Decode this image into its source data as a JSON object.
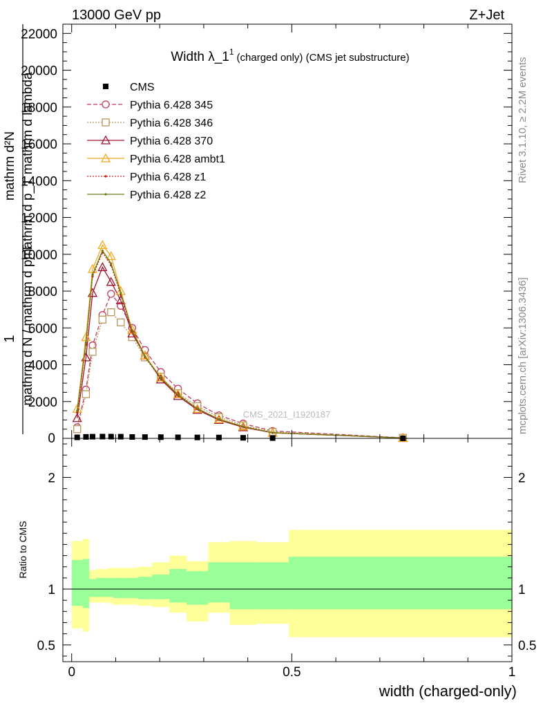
{
  "header": {
    "left": "13000 GeV pp",
    "right": "Z+Jet"
  },
  "side": {
    "rivet": "Rivet 3.1.10, ≥ 2.2M events",
    "mcplots": "mcplots.cern.ch [arXiv:1306.3436]"
  },
  "watermark": "CMS_2021_I1920187",
  "colors": {
    "cms": "#000000",
    "p345": "#c0395a",
    "p346": "#b8955a",
    "p370": "#a0102a",
    "ambt1": "#f4a81a",
    "z1": "#c41b1b",
    "z2": "#6b7a15",
    "band_outer": "#ffff99",
    "band_inner": "#99ff99"
  },
  "chart_data": [
    {
      "type": "line",
      "title": "Width λ_1",
      "title_sup": "1",
      "title_suffix": "(charged only) (CMS jet substructure)",
      "ylabel_upper": "mathrm d²N",
      "ylabel_lower": "mathrm d p_T mathrm d lambda",
      "ylabel_frac_num": "1",
      "ylabel_frac_den": "mathrm d N / mathrm d p_T",
      "ylim": [
        0,
        22500
      ],
      "xlim": [
        -0.02,
        1.0
      ],
      "yticks_major": [
        2000,
        4000,
        6000,
        8000,
        10000,
        12000,
        14000,
        16000,
        18000,
        20000,
        22000
      ],
      "ytick_labels": [
        "2000",
        "4000",
        "6000",
        "8000",
        "10000",
        "12000",
        "14000",
        "16000",
        "18000",
        "20000",
        "22000"
      ],
      "ytick_zero": "0",
      "x": [
        0.0125,
        0.0325,
        0.0475,
        0.07,
        0.0895,
        0.1115,
        0.1375,
        0.1665,
        0.2025,
        0.2415,
        0.2855,
        0.3345,
        0.3895,
        0.4565,
        0.7525
      ],
      "legend_position": "top-left",
      "series": [
        {
          "name": "CMS",
          "key": "cms",
          "marker": "square",
          "dash": "none",
          "values": [
            55,
            80,
            90,
            95,
            95,
            90,
            75,
            70,
            65,
            55,
            50,
            45,
            30,
            15,
            2
          ]
        },
        {
          "name": "Pythia 6.428 345",
          "key": "p345",
          "marker": "circle",
          "dash": "6,3",
          "values": [
            600,
            2650,
            5050,
            6700,
            7850,
            7200,
            6000,
            4800,
            3600,
            2700,
            1900,
            1250,
            800,
            400,
            30
          ]
        },
        {
          "name": "Pythia 6.428 346",
          "key": "p346",
          "marker": "square-open",
          "dash": "2,2",
          "values": [
            500,
            2400,
            4700,
            6450,
            6850,
            6300,
            5500,
            4400,
            3350,
            2450,
            1750,
            1150,
            700,
            350,
            30
          ]
        },
        {
          "name": "Pythia 6.428 370",
          "key": "p370",
          "marker": "triangle",
          "dash": "none",
          "values": [
            1100,
            4400,
            7900,
            9300,
            8500,
            7500,
            5700,
            4500,
            3200,
            2300,
            1550,
            1000,
            600,
            300,
            20
          ]
        },
        {
          "name": "Pythia 6.428 ambt1",
          "key": "ambt1",
          "marker": "triangle",
          "dash": "none",
          "values": [
            1600,
            5500,
            9200,
            10500,
            9900,
            8000,
            5900,
            4500,
            3300,
            2400,
            1600,
            1050,
            650,
            300,
            20
          ]
        },
        {
          "name": "Pythia 6.428 z1",
          "key": "z1",
          "marker": "dot",
          "dash": "2,2",
          "values": [
            1400,
            5100,
            8800,
            10100,
            9400,
            7800,
            5800,
            4400,
            3250,
            2350,
            1600,
            1020,
            620,
            300,
            20
          ]
        },
        {
          "name": "Pythia 6.428 z2",
          "key": "z2",
          "marker": "dot",
          "dash": "none",
          "values": [
            1500,
            5200,
            8900,
            10200,
            9500,
            7900,
            5850,
            4450,
            3280,
            2370,
            1620,
            1040,
            640,
            310,
            20
          ]
        }
      ]
    },
    {
      "type": "area",
      "ylabel": "Ratio to CMS",
      "xlabel": "width (charged-only)",
      "ylim": [
        0.35,
        2.35
      ],
      "xlim": [
        -0.02,
        1.0
      ],
      "yticks_major": [
        0.5,
        1,
        2
      ],
      "ytick_labels": [
        "0.5",
        "1",
        "2"
      ],
      "xticks_major": [
        0,
        0.5,
        1
      ],
      "xtick_labels": [
        "0",
        "0.5",
        "1"
      ],
      "reference_line": 1,
      "bin_edges": [
        0,
        0.025,
        0.04,
        0.055,
        0.085,
        0.094,
        0.125,
        0.15,
        0.183,
        0.222,
        0.261,
        0.31,
        0.359,
        0.42,
        0.493,
        1.0
      ],
      "bands": [
        {
          "key": "band_outer",
          "lo": [
            0.65,
            0.62,
            0.88,
            0.88,
            0.87,
            0.86,
            0.86,
            0.85,
            0.84,
            0.79,
            0.71,
            0.79,
            0.68,
            0.69,
            0.57
          ],
          "hi": [
            1.43,
            1.45,
            1.17,
            1.18,
            1.19,
            1.19,
            1.19,
            1.2,
            1.24,
            1.3,
            1.25,
            1.42,
            1.43,
            1.42,
            1.53
          ]
        },
        {
          "key": "band_inner",
          "lo": [
            0.85,
            0.83,
            0.93,
            0.93,
            0.93,
            0.92,
            0.92,
            0.91,
            0.91,
            0.88,
            0.86,
            0.88,
            0.82,
            0.82,
            0.82
          ],
          "hi": [
            1.26,
            1.27,
            1.09,
            1.1,
            1.1,
            1.1,
            1.1,
            1.11,
            1.13,
            1.18,
            1.16,
            1.24,
            1.24,
            1.24,
            1.29
          ]
        }
      ]
    }
  ]
}
